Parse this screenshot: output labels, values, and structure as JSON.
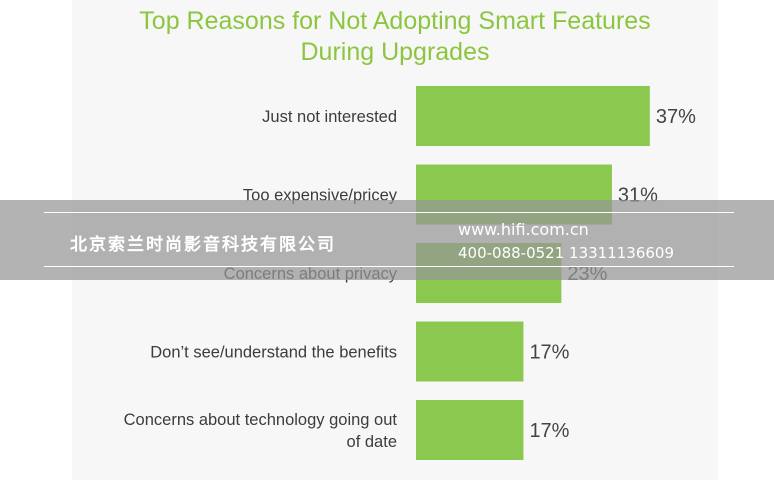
{
  "chart_data": {
    "type": "bar",
    "orientation": "horizontal",
    "title": "Top Reasons for Not Adopting Smart Features During Upgrades",
    "title_lines": [
      "Top Reasons for Not Adopting Smart Features",
      "During Upgrades"
    ],
    "categories": [
      [
        "Just not interested"
      ],
      [
        "Too expensive/pricey"
      ],
      [
        "Concerns about privacy"
      ],
      [
        "Don’t see/understand the benefits"
      ],
      [
        "Concerns about technology going out",
        "of date"
      ]
    ],
    "values": [
      37,
      31,
      23,
      17,
      17
    ],
    "value_labels": [
      "37%",
      "31%",
      "23%",
      "17%",
      "17%"
    ],
    "unit": "%",
    "xlim": [
      0,
      40
    ],
    "grid": false,
    "legend": "none",
    "colors": {
      "bar": "#8bc84f",
      "title": "#8cc63f",
      "label": "#3c3c3c",
      "value": "#444444"
    }
  },
  "watermark": {
    "company": "北京索兰时尚影音科技有限公司",
    "url": "www.hifi.com.cn",
    "phone": "400-088-0521  13311136609"
  }
}
